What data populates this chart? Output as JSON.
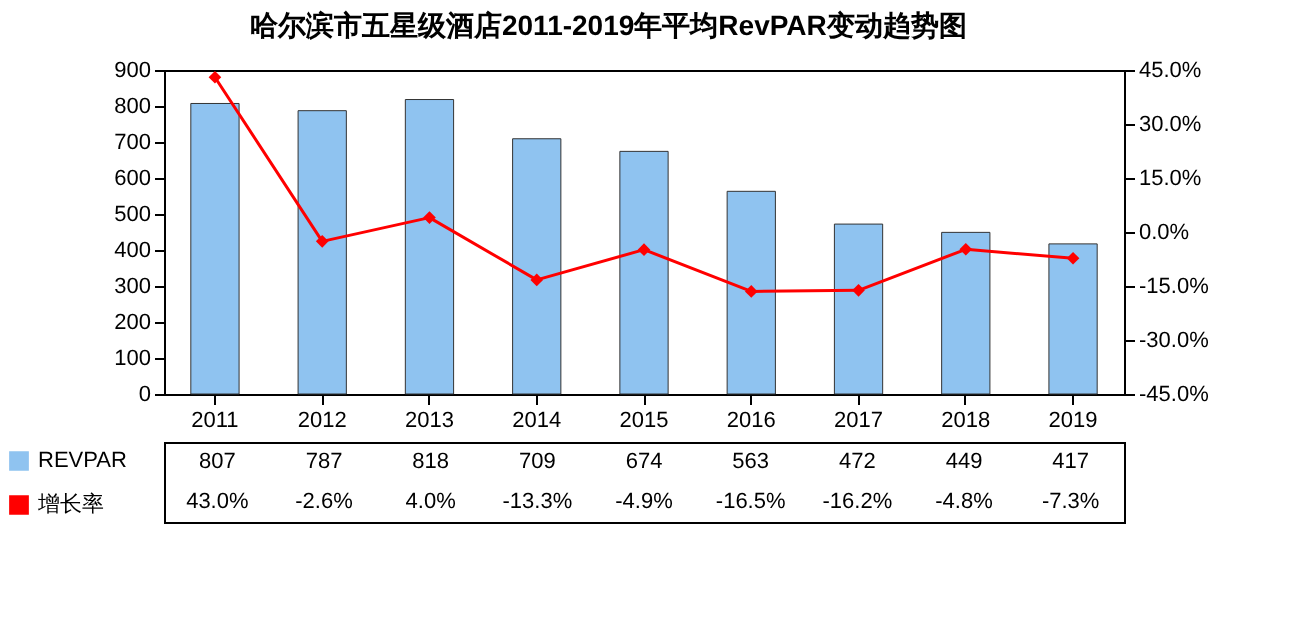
{
  "chart_data": {
    "type": "bar",
    "title": "哈尔滨市五星级酒店2011-2019年平均RevPAR变动趋势图",
    "categories": [
      "2011",
      "2012",
      "2013",
      "2014",
      "2015",
      "2016",
      "2017",
      "2018",
      "2019"
    ],
    "series": [
      {
        "name": "REVPAR",
        "color": "#8fc3f0",
        "values": [
          807,
          787,
          818,
          709,
          674,
          563,
          472,
          449,
          417
        ],
        "value_labels": [
          "807",
          "787",
          "818",
          "709",
          "674",
          "563",
          "472",
          "449",
          "417"
        ]
      },
      {
        "name": "增长率",
        "type": "line",
        "axis": "y2",
        "color": "#ff0000",
        "values": [
          43.0,
          -2.6,
          4.0,
          -13.3,
          -4.9,
          -16.5,
          -16.2,
          -4.8,
          -7.3
        ],
        "value_labels": [
          "43.0%",
          "-2.6%",
          "4.0%",
          "-13.3%",
          "-4.9%",
          "-16.5%",
          "-16.2%",
          "-4.8%",
          "-7.3%"
        ]
      }
    ],
    "ylim": [
      0,
      900
    ],
    "yticks": [
      0,
      100,
      200,
      300,
      400,
      500,
      600,
      700,
      800,
      900
    ],
    "y2lim": [
      -45,
      45
    ],
    "y2ticks": [
      {
        "value": -45,
        "label": "-45.0%"
      },
      {
        "value": -30,
        "label": "-30.0%"
      },
      {
        "value": -15,
        "label": "-15.0%"
      },
      {
        "value": 0,
        "label": "0.0%"
      },
      {
        "value": 15,
        "label": "15.0%"
      },
      {
        "value": 30,
        "label": "30.0%"
      },
      {
        "value": 45,
        "label": "45.0%"
      }
    ],
    "marker": "diamond",
    "grid": false,
    "legend": "bottom left"
  }
}
